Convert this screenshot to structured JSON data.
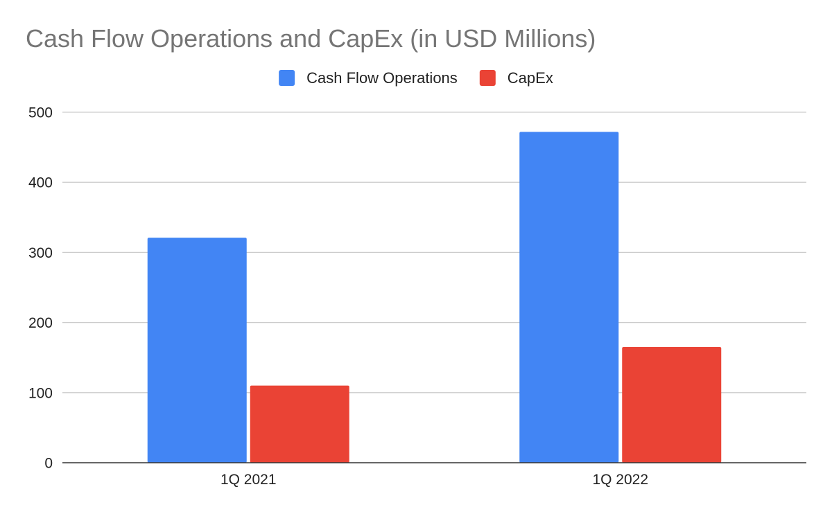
{
  "chart_data": {
    "type": "bar",
    "title": "Cash Flow Operations and CapEx (in USD Millions)",
    "categories": [
      "1Q 2021",
      "1Q 2022"
    ],
    "series": [
      {
        "name": "Cash Flow Operations",
        "color": "#4285f4",
        "values": [
          321,
          472
        ]
      },
      {
        "name": "CapEx",
        "color": "#ea4335",
        "values": [
          110,
          165
        ]
      }
    ],
    "y_ticks": [
      0,
      100,
      200,
      300,
      400,
      500
    ],
    "ylim": [
      0,
      500
    ],
    "xlabel": "",
    "ylabel": "",
    "grid": true,
    "legend_position": "top-center"
  }
}
